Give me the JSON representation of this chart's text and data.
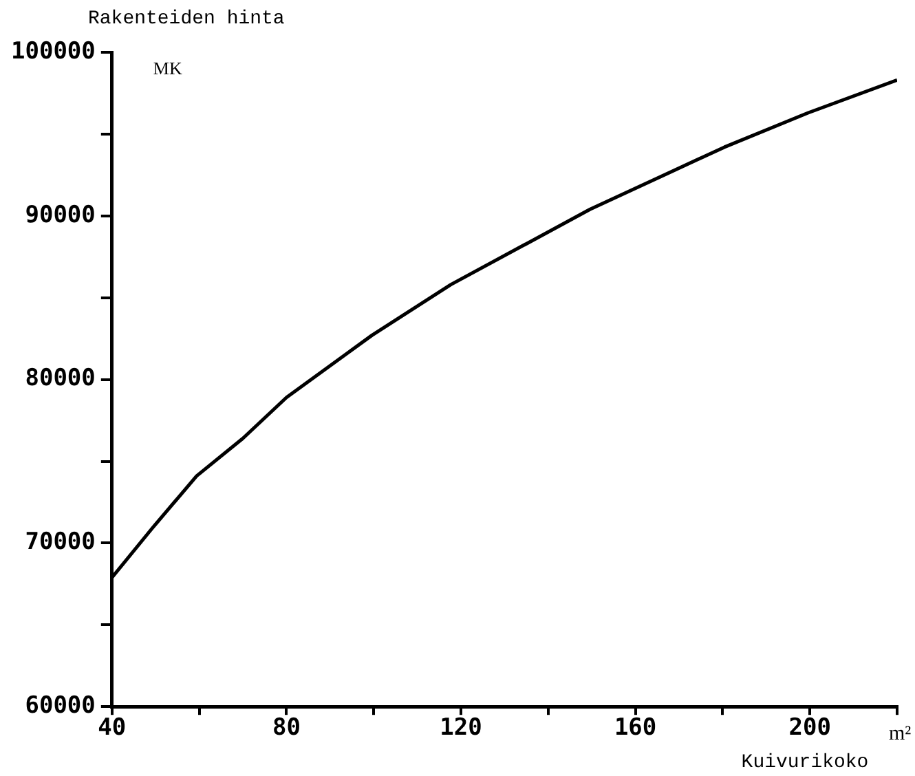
{
  "chart_data": {
    "type": "line",
    "title": "Rakenteiden hinta",
    "ylabel": "MK",
    "xlabel": "Kuivurikoko",
    "annotations": [
      "m²"
    ],
    "x": [
      40,
      49.2,
      59.4,
      70,
      80,
      99.6,
      117.7,
      149.6,
      180.4,
      199.6,
      220
    ],
    "series": [
      {
        "color": "#000000",
        "values": [
          67900,
          70900,
          74100,
          76400,
          78900,
          82700,
          85800,
          90400,
          94200,
          96300,
          98300
        ]
      }
    ],
    "xlim": [
      40,
      220
    ],
    "xticks": [
      40,
      {
        "value": 60,
        "label": null
      },
      80,
      {
        "value": 100,
        "label": null
      },
      120,
      {
        "value": 140,
        "label": null
      },
      160,
      {
        "value": 180,
        "label": null
      },
      200,
      {
        "value": 220,
        "label": null
      }
    ],
    "ylim": [
      60000,
      100000
    ],
    "yticks": [
      60000,
      {
        "value": 65000,
        "label": null
      },
      70000,
      {
        "value": 75000,
        "label": null
      },
      80000,
      {
        "value": 85000,
        "label": null
      },
      90000,
      {
        "value": 95000,
        "label": null
      },
      100000
    ],
    "grid": false,
    "legend": false,
    "marker": "none",
    "line_style": "solid"
  }
}
